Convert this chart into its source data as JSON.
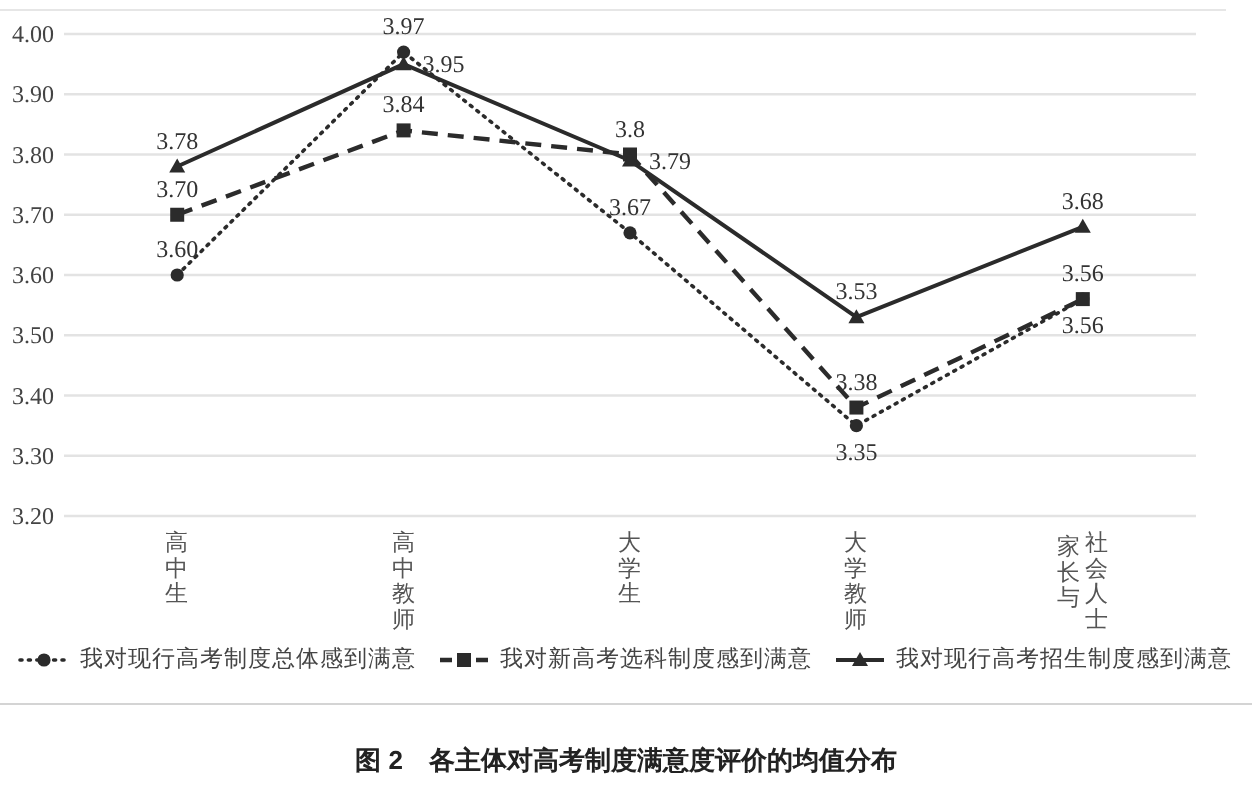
{
  "chart_data": {
    "type": "line",
    "categories": [
      "高中生",
      "高中教师",
      "大学生",
      "大学教师",
      "家长与社会人士"
    ],
    "series": [
      {
        "name": "我对现行高考制度总体感到满意",
        "color": "#2b2b2b",
        "marker": "circle",
        "line_style": "dotted",
        "values": [
          3.6,
          3.97,
          3.67,
          3.35,
          3.56
        ],
        "value_labels": [
          "3.60",
          "3.97",
          "3.67",
          "3.35",
          "3.56"
        ]
      },
      {
        "name": "我对新高考选科制度感到满意",
        "color": "#2b2b2b",
        "marker": "square",
        "line_style": "dashed",
        "values": [
          3.7,
          3.84,
          3.8,
          3.38,
          3.56
        ],
        "value_labels": [
          "3.70",
          "3.84",
          "3.8",
          "3.38",
          "3.56"
        ]
      },
      {
        "name": "我对现行高考招生制度感到满意",
        "color": "#2b2b2b",
        "marker": "triangle",
        "line_style": "solid",
        "values": [
          3.78,
          3.95,
          3.79,
          3.53,
          3.68
        ],
        "value_labels": [
          "3.78",
          "3.95",
          "3.79",
          "3.53",
          "3.68"
        ]
      }
    ],
    "ylim": [
      3.2,
      4.0
    ],
    "yticks": [
      {
        "value": 3.2,
        "label": "3.20"
      },
      {
        "value": 3.3,
        "label": "3.30"
      },
      {
        "value": 3.4,
        "label": "3.40"
      },
      {
        "value": 3.5,
        "label": "3.50"
      },
      {
        "value": 3.6,
        "label": "3.60"
      },
      {
        "value": 3.7,
        "label": "3.70"
      },
      {
        "value": 3.8,
        "label": "3.80"
      },
      {
        "value": 3.9,
        "label": "3.90"
      },
      {
        "value": 4.0,
        "label": "4.00"
      }
    ],
    "grid": "y",
    "legend": "bottom",
    "annotations": [
      "图 2　各主体对高考制度满意度评价的均值分布"
    ]
  }
}
